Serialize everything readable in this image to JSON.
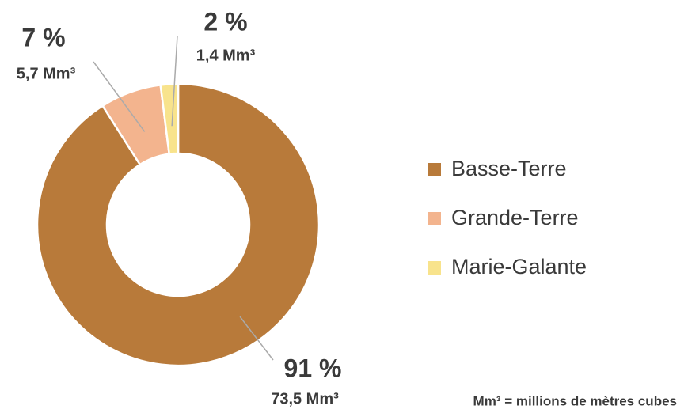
{
  "chart_data": {
    "type": "donut",
    "categories": [
      "Basse-Terre",
      "Grande-Terre",
      "Marie-Galante"
    ],
    "values": [
      91,
      7,
      2
    ],
    "value_labels": [
      "91 %",
      "7 %",
      "2 %"
    ],
    "volume_labels": [
      "73,5 Mm³",
      "5,7 Mm³",
      "1,4 Mm³"
    ],
    "colors": [
      "#b87a3a",
      "#f3b48e",
      "#f8e38c"
    ],
    "legend": "right",
    "note": "Mm³ = millions de mètres cubes"
  }
}
